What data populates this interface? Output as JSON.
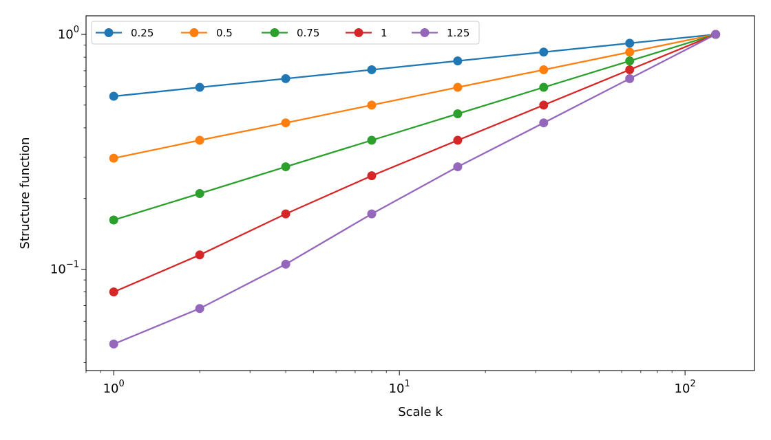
{
  "chart_data": {
    "type": "line",
    "xlabel": "Scale k",
    "ylabel": "Structure function",
    "xscale": "log",
    "yscale": "log",
    "xlim": [
      0.8,
      175
    ],
    "ylim": [
      0.037,
      1.2
    ],
    "x_ticks": [
      {
        "value": 1,
        "base": "10",
        "exp": "0"
      },
      {
        "value": 10,
        "base": "10",
        "exp": "1"
      },
      {
        "value": 100,
        "base": "10",
        "exp": "2"
      }
    ],
    "y_ticks": [
      {
        "value": 0.1,
        "base": "10",
        "exp": "−1"
      },
      {
        "value": 1,
        "base": "10",
        "exp": "0"
      }
    ],
    "x": [
      1,
      2,
      4,
      8,
      16,
      32,
      64,
      128
    ],
    "grid": false,
    "legend_position": "top-left",
    "series": [
      {
        "name": "0.25",
        "color": "#1f77b4",
        "values": [
          0.545,
          0.595,
          0.648,
          0.707,
          0.771,
          0.841,
          0.917,
          1.0
        ]
      },
      {
        "name": "0.5",
        "color": "#ff7f0e",
        "values": [
          0.297,
          0.354,
          0.42,
          0.5,
          0.595,
          0.707,
          0.841,
          1.0
        ]
      },
      {
        "name": "0.75",
        "color": "#2ca02c",
        "values": [
          0.162,
          0.21,
          0.273,
          0.354,
          0.459,
          0.595,
          0.771,
          1.0
        ]
      },
      {
        "name": "1",
        "color": "#d62728",
        "values": [
          0.08,
          0.115,
          0.172,
          0.25,
          0.354,
          0.5,
          0.707,
          1.0
        ]
      },
      {
        "name": "1.25",
        "color": "#9467bd",
        "values": [
          0.048,
          0.068,
          0.105,
          0.172,
          0.273,
          0.42,
          0.648,
          1.0
        ]
      }
    ]
  }
}
